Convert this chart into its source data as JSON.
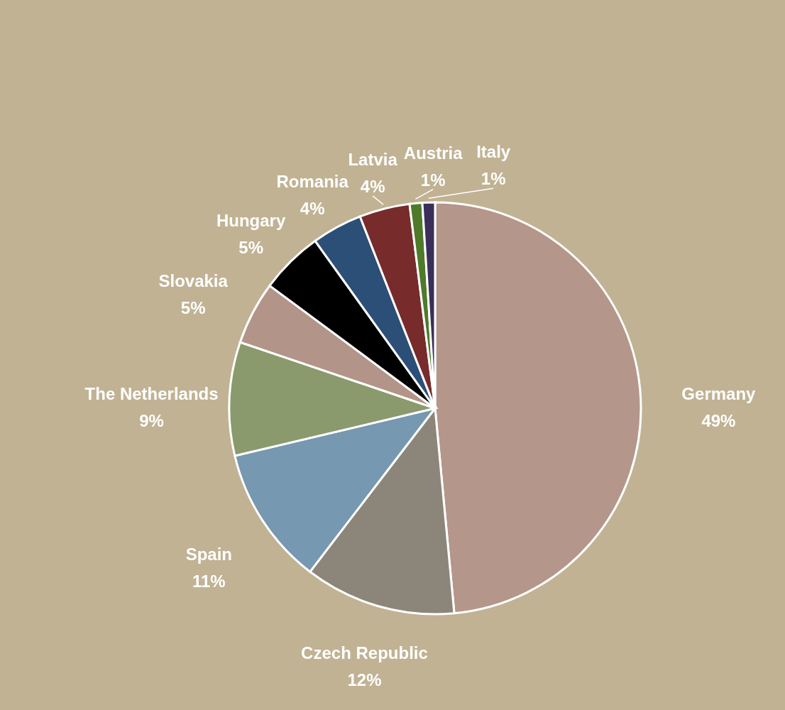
{
  "chart_data": {
    "type": "pie",
    "categories": [
      "Germany",
      "Czech Republic",
      "Spain",
      "The Netherlands",
      "Slovakia",
      "Hungary",
      "Romania",
      "Latvia",
      "Austria",
      "Italy"
    ],
    "values": [
      49,
      12,
      11,
      9,
      5,
      5,
      4,
      4,
      1,
      1
    ],
    "value_labels": [
      "49%",
      "12%",
      "11%",
      "9%",
      "5%",
      "5%",
      "4%",
      "4%",
      "1%",
      "1%"
    ],
    "colors": [
      "#b5968a",
      "#8c857a",
      "#7698b0",
      "#8a9a6c",
      "#b39488",
      "#000000",
      "#2c4f78",
      "#772b2b",
      "#4e7a2a",
      "#3a2f5a"
    ]
  }
}
